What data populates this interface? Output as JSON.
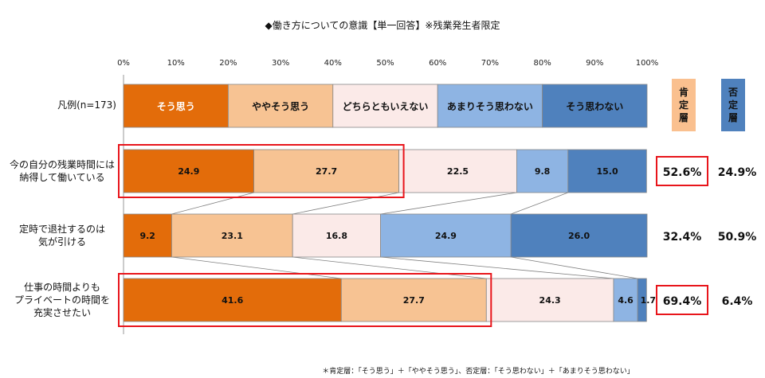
{
  "chart_data": {
    "type": "bar",
    "stacked": true,
    "orientation": "horizontal",
    "title": "◆働き方についての意識【単一回答】※残業発生者限定",
    "x_ticks": [
      "0%",
      "10%",
      "20%",
      "30%",
      "40%",
      "50%",
      "60%",
      "70%",
      "80%",
      "90%",
      "100%"
    ],
    "xlim": [
      0,
      100
    ],
    "legend_row_label": "凡例(n=173)",
    "segments": [
      {
        "name": "そう思う",
        "color": "#E36C0A",
        "text_color": "#ffffff"
      },
      {
        "name": "ややそう思う",
        "color": "#F7C393",
        "text_color": "#111111"
      },
      {
        "name": "どちらともいえない",
        "color": "#FBEAE8",
        "text_color": "#111111"
      },
      {
        "name": "あまりそう思わない",
        "color": "#8EB4E3",
        "text_color": "#111111"
      },
      {
        "name": "そう思わない",
        "color": "#4F81BD",
        "text_color": "#111111"
      }
    ],
    "categories": [
      [
        "今の自分の残業時間には",
        "納得して働いている"
      ],
      [
        "定時で退社するのは",
        "気が引ける"
      ],
      [
        "仕事の時間よりも",
        "プライベートの時間を",
        "充実させたい"
      ]
    ],
    "rows": [
      {
        "values": [
          24.9,
          27.7,
          22.5,
          9.8,
          15.0
        ],
        "labels": [
          "24.9",
          "27.7",
          "22.5",
          "9.8",
          "15.0"
        ],
        "positive": "52.6%",
        "negative": "24.9%",
        "highlight": true
      },
      {
        "values": [
          9.2,
          23.1,
          16.8,
          24.9,
          26.0
        ],
        "labels": [
          "9.2",
          "23.1",
          "16.8",
          "24.9",
          "26.0"
        ],
        "positive": "32.4%",
        "negative": "50.9%",
        "highlight": false
      },
      {
        "values": [
          41.6,
          27.7,
          24.3,
          4.6,
          1.7
        ],
        "labels": [
          "41.6",
          "27.7",
          "24.3",
          "4.6",
          "1.7"
        ],
        "positive": "69.4%",
        "negative": "6.4%",
        "highlight": true
      }
    ],
    "positive_header": [
      "肯",
      "定",
      "層"
    ],
    "negative_header": [
      "否",
      "定",
      "層"
    ],
    "positive_header_color": "#FAC08F",
    "negative_header_color": "#4F81BD",
    "highlight_color": "#E8151B",
    "footnote": "＊肯定層：「そう思う」＋「ややそう思う」、否定層：「そう思わない」＋「あまりそう思わない」"
  }
}
